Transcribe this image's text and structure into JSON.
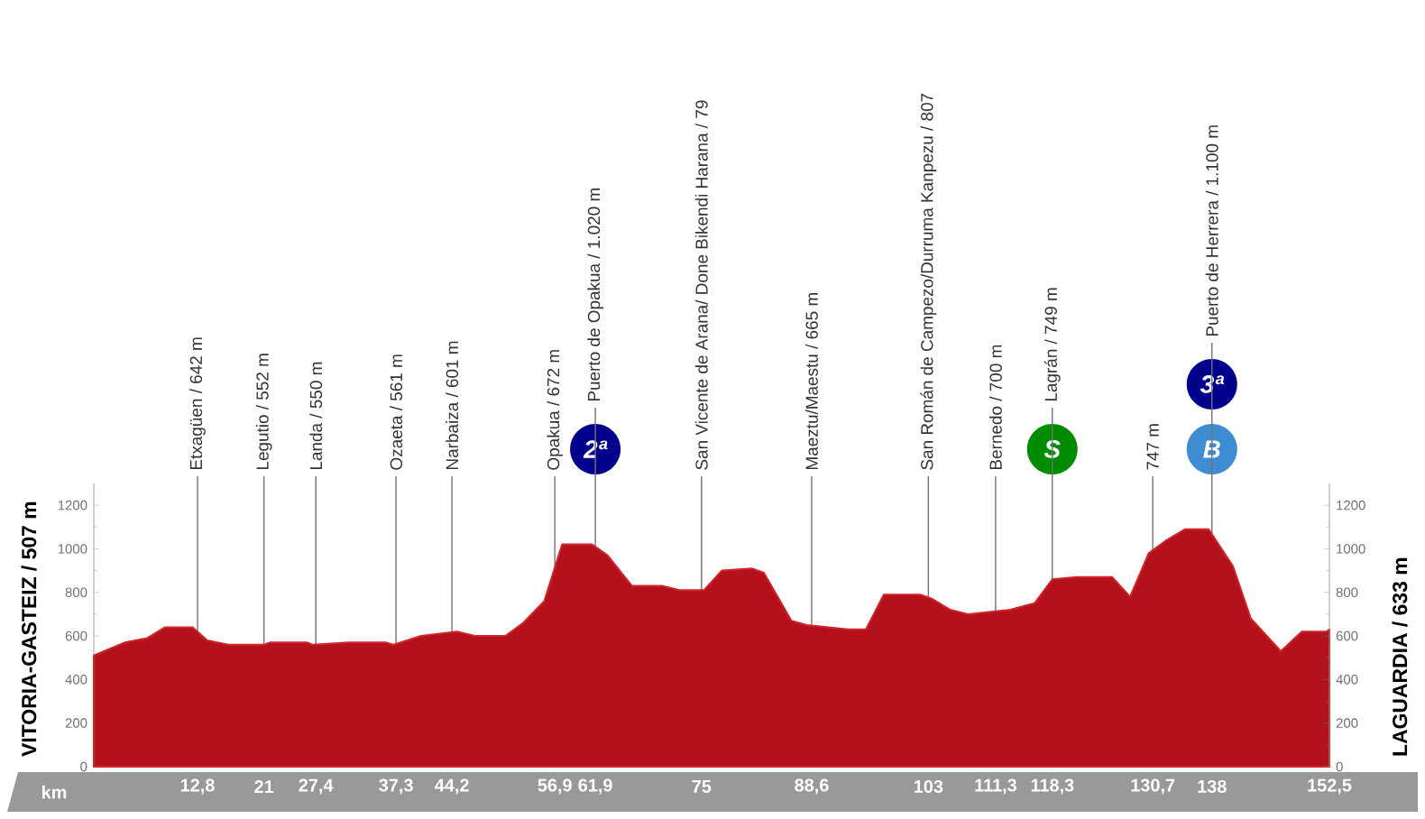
{
  "chart_data": {
    "type": "area",
    "xlabel": "km",
    "color": "#b3121c",
    "x": [
      0,
      3.8,
      6.6,
      8.8,
      12.2,
      14.0,
      16.6,
      21,
      21.8,
      26.3,
      27,
      31.5,
      36,
      37,
      40.4,
      44.8,
      47,
      50.8,
      53,
      55.6,
      57.8,
      61.5,
      63.4,
      66.4,
      70.1,
      72.3,
      75.3,
      77.5,
      81.2,
      82.7,
      86.1,
      88.0,
      93.1,
      95.3,
      97.5,
      102,
      103.5,
      105.7,
      107.9,
      113.1,
      116.1,
      118.3,
      121.3,
      125.7,
      127.9,
      130.2,
      132.4,
      134.7,
      137.6,
      140.6,
      142.8,
      146.5,
      149.1,
      152.1,
      152.5
    ],
    "values": [
      510,
      570,
      590,
      640,
      640,
      580,
      560,
      560,
      570,
      570,
      560,
      570,
      570,
      560,
      600,
      620,
      600,
      600,
      660,
      760,
      1020,
      1020,
      970,
      830,
      830,
      810,
      810,
      900,
      910,
      890,
      670,
      650,
      630,
      630,
      790,
      790,
      770,
      720,
      700,
      720,
      750,
      860,
      870,
      870,
      780,
      980,
      1040,
      1090,
      1090,
      920,
      680,
      530,
      620,
      620,
      630
    ],
    "xlim": [
      0,
      152.5
    ],
    "ylim": [
      0,
      1300
    ],
    "yticks": [
      0,
      200,
      400,
      600,
      800,
      1000,
      1200
    ],
    "y2lim": [
      0,
      1300
    ],
    "y2ticks": [
      0,
      200,
      400,
      600,
      800,
      1000,
      1200
    ],
    "xticks": [
      {
        "value": 12.8,
        "label": "12,8"
      },
      21,
      {
        "value": 27.4,
        "label": "27,4"
      },
      {
        "value": 37.3,
        "label": "37,3"
      },
      {
        "value": 44.2,
        "label": "44,2"
      },
      {
        "value": 56.9,
        "label": "56,9"
      },
      {
        "value": 61.9,
        "label": "61,9"
      },
      75,
      {
        "value": 88.6,
        "label": "88,6"
      },
      103,
      {
        "value": 111.3,
        "label": "111,3"
      },
      {
        "value": 118.3,
        "label": "118,3"
      },
      {
        "value": 130.7,
        "label": "130,7"
      },
      138,
      {
        "value": 152.5,
        "label": "152,5"
      }
    ],
    "ref_lines": [
      {
        "axis": "x",
        "value": 12.8,
        "label": "Etxagüen / 642 m"
      },
      {
        "axis": "x",
        "value": 21,
        "label": "Legutio / 552 m"
      },
      {
        "axis": "x",
        "value": 27.4,
        "label": "Landa / 550 m"
      },
      {
        "axis": "x",
        "value": 37.3,
        "label": "Ozaeta / 561 m"
      },
      {
        "axis": "x",
        "value": 44.2,
        "label": "Narbaiza / 601 m"
      },
      {
        "axis": "x",
        "value": 56.9,
        "label": "Opakua / 672 m"
      },
      {
        "axis": "x",
        "value": 61.9,
        "label": "Puerto de Opakua / 1.020 m"
      },
      {
        "axis": "x",
        "value": 75,
        "label": "San Vicente de Arana/ Done Bikendi Harana / 79"
      },
      {
        "axis": "x",
        "value": 88.6,
        "label": "Maeztu/Maestu / 665 m"
      },
      {
        "axis": "x",
        "value": 103,
        "label": "San Román de Campezo/Durruma Kanpezu / 807"
      },
      {
        "axis": "x",
        "value": 111.3,
        "label": "Bernedo / 700 m"
      },
      {
        "axis": "x",
        "value": 118.3,
        "label": "Lagrán / 749 m"
      },
      {
        "axis": "x",
        "value": 130.7,
        "label": "747 m"
      },
      {
        "axis": "x",
        "value": 138,
        "label": "Puerto de Herrera / 1.100 m"
      }
    ],
    "annotations": [
      "VITORIA-GASTEIZ / 507 m",
      "LAGUARDIA / 633 m",
      {
        "text": "2ª",
        "x": 61.9
      },
      {
        "text": "S",
        "x": 118.3
      },
      {
        "text": "B",
        "x": 138
      },
      {
        "text": "3ª",
        "x": 138
      }
    ]
  }
}
